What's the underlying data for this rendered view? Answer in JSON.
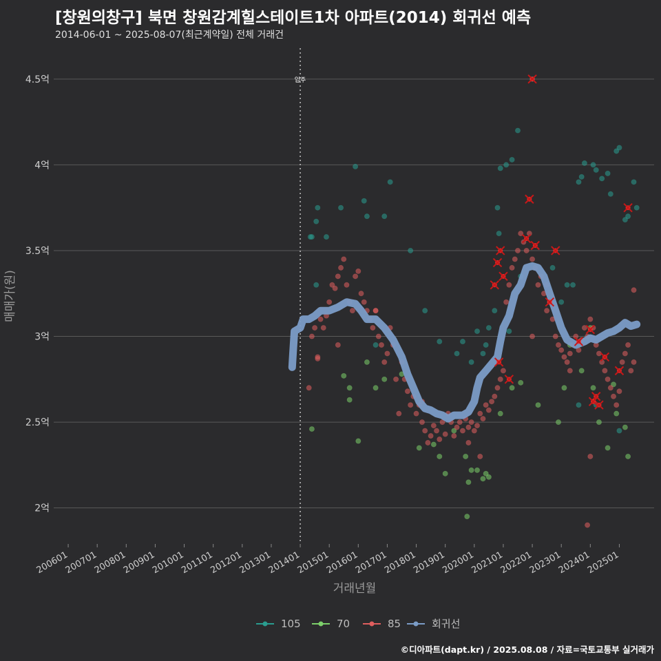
{
  "title": "[창원의창구] 북면 창원감계힐스테이트1차 아파트(2014) 회귀선 예측",
  "subtitle": "2014-06-01 ~ 2025-08-07(최근계약일) 전체 거래건",
  "credit": "©디아파트(dapt.kr) / 2025.08.08 / 자료=국토교통부 실거래가",
  "colors": {
    "bg": "#2b2b2d",
    "grid": "#5a5a5a",
    "c105": "#2a9d8f",
    "c70": "#7ccf6a",
    "c85": "#e05e5e",
    "reg": "#7b9cc7",
    "hl": "#ff2a2a"
  },
  "chart_data": {
    "type": "scatter",
    "xlabel": "거래년월",
    "ylabel": "매매가(원)",
    "x_tick_labels": [
      "200601",
      "200701",
      "200801",
      "200901",
      "201001",
      "201101",
      "201201",
      "201301",
      "201401",
      "201501",
      "201601",
      "201701",
      "201801",
      "201901",
      "202001",
      "202101",
      "202201",
      "202301",
      "202401",
      "202501"
    ],
    "y_ticks": [
      {
        "v": 2.0,
        "label": "2억"
      },
      {
        "v": 2.5,
        "label": "2.5억"
      },
      {
        "v": 3.0,
        "label": "3억"
      },
      {
        "v": 3.5,
        "label": "3.5억"
      },
      {
        "v": 4.0,
        "label": "4억"
      },
      {
        "v": 4.5,
        "label": "4.5억"
      }
    ],
    "xlim": [
      2005.5,
      2026.2
    ],
    "ylim": [
      1.79,
      4.68
    ],
    "move_in": {
      "x": 2014.0,
      "label": "입주"
    },
    "legend": [
      {
        "key": "105",
        "label": "105"
      },
      {
        "key": "70",
        "label": "70"
      },
      {
        "key": "85",
        "label": "85"
      },
      {
        "key": "reg",
        "label": "회귀선"
      }
    ],
    "series": [
      {
        "name": "105",
        "points": [
          [
            2014.35,
            3.58
          ],
          [
            2014.4,
            3.58
          ],
          [
            2014.55,
            3.67
          ],
          [
            2014.6,
            3.75
          ],
          [
            2014.55,
            3.3
          ],
          [
            2014.9,
            3.58
          ],
          [
            2015.4,
            3.75
          ],
          [
            2015.9,
            3.99
          ],
          [
            2016.2,
            3.79
          ],
          [
            2016.3,
            3.7
          ],
          [
            2016.6,
            2.95
          ],
          [
            2016.9,
            3.7
          ],
          [
            2017.1,
            3.9
          ],
          [
            2017.8,
            3.5
          ],
          [
            2018.3,
            3.15
          ],
          [
            2018.8,
            2.97
          ],
          [
            2019.4,
            2.9
          ],
          [
            2019.6,
            2.97
          ],
          [
            2019.9,
            2.85
          ],
          [
            2020.1,
            3.03
          ],
          [
            2020.3,
            2.9
          ],
          [
            2020.4,
            2.95
          ],
          [
            2020.5,
            3.05
          ],
          [
            2020.7,
            3.15
          ],
          [
            2020.8,
            3.75
          ],
          [
            2020.85,
            3.6
          ],
          [
            2020.9,
            3.98
          ],
          [
            2021.1,
            4.0
          ],
          [
            2021.3,
            4.03
          ],
          [
            2021.5,
            4.2
          ],
          [
            2021.2,
            3.03
          ],
          [
            2021.6,
            3.35
          ],
          [
            2022.0,
            4.5
          ],
          [
            2022.7,
            3.4
          ],
          [
            2023.0,
            3.2
          ],
          [
            2023.2,
            3.3
          ],
          [
            2023.4,
            3.3
          ],
          [
            2023.6,
            3.9
          ],
          [
            2023.7,
            3.93
          ],
          [
            2023.8,
            4.01
          ],
          [
            2024.1,
            4.0
          ],
          [
            2024.2,
            3.97
          ],
          [
            2024.4,
            3.92
          ],
          [
            2024.6,
            3.95
          ],
          [
            2024.7,
            3.83
          ],
          [
            2024.9,
            4.08
          ],
          [
            2025.0,
            4.1
          ],
          [
            2025.2,
            3.68
          ],
          [
            2025.3,
            3.7
          ],
          [
            2025.5,
            3.9
          ],
          [
            2025.6,
            3.75
          ],
          [
            2025.0,
            2.45
          ],
          [
            2024.2,
            2.6
          ],
          [
            2023.6,
            2.6
          ]
        ]
      },
      {
        "name": "70",
        "points": [
          [
            2014.4,
            2.46
          ],
          [
            2015.5,
            2.77
          ],
          [
            2015.7,
            2.7
          ],
          [
            2015.7,
            2.63
          ],
          [
            2016.0,
            2.39
          ],
          [
            2016.3,
            2.85
          ],
          [
            2016.6,
            2.7
          ],
          [
            2016.9,
            2.75
          ],
          [
            2017.5,
            2.78
          ],
          [
            2018.1,
            2.35
          ],
          [
            2018.6,
            2.37
          ],
          [
            2018.8,
            2.3
          ],
          [
            2019.0,
            2.2
          ],
          [
            2019.3,
            2.45
          ],
          [
            2019.7,
            2.3
          ],
          [
            2019.9,
            2.22
          ],
          [
            2020.1,
            2.22
          ],
          [
            2020.3,
            2.17
          ],
          [
            2020.4,
            2.2
          ],
          [
            2020.5,
            2.18
          ],
          [
            2019.8,
            2.15
          ],
          [
            2019.75,
            1.95
          ],
          [
            2020.9,
            2.55
          ],
          [
            2021.3,
            2.7
          ],
          [
            2021.6,
            2.73
          ],
          [
            2022.2,
            2.6
          ],
          [
            2022.9,
            2.5
          ],
          [
            2023.1,
            2.7
          ],
          [
            2023.7,
            2.8
          ],
          [
            2024.1,
            2.7
          ],
          [
            2024.3,
            2.5
          ],
          [
            2024.6,
            2.35
          ],
          [
            2024.8,
            2.72
          ],
          [
            2024.9,
            2.55
          ],
          [
            2025.2,
            2.47
          ],
          [
            2025.3,
            2.3
          ],
          [
            2024.0,
            3.05
          ],
          [
            2023.3,
            2.95
          ]
        ]
      },
      {
        "name": "85",
        "points": [
          [
            2014.4,
            3.0
          ],
          [
            2014.5,
            3.05
          ],
          [
            2014.6,
            2.87
          ],
          [
            2014.7,
            3.1
          ],
          [
            2014.8,
            3.05
          ],
          [
            2014.9,
            3.12
          ],
          [
            2015.0,
            3.2
          ],
          [
            2015.1,
            3.3
          ],
          [
            2015.2,
            3.28
          ],
          [
            2015.3,
            3.35
          ],
          [
            2015.4,
            3.4
          ],
          [
            2015.5,
            3.45
          ],
          [
            2015.6,
            3.3
          ],
          [
            2015.7,
            3.2
          ],
          [
            2015.8,
            3.15
          ],
          [
            2015.9,
            3.35
          ],
          [
            2016.0,
            3.38
          ],
          [
            2016.1,
            3.25
          ],
          [
            2016.2,
            3.2
          ],
          [
            2016.3,
            3.15
          ],
          [
            2016.4,
            3.1
          ],
          [
            2016.5,
            3.05
          ],
          [
            2016.6,
            3.15
          ],
          [
            2016.7,
            3.0
          ],
          [
            2016.8,
            2.95
          ],
          [
            2016.9,
            2.85
          ],
          [
            2017.0,
            2.9
          ],
          [
            2017.1,
            3.05
          ],
          [
            2017.2,
            2.95
          ],
          [
            2017.3,
            2.75
          ],
          [
            2017.5,
            2.85
          ],
          [
            2017.6,
            2.75
          ],
          [
            2017.7,
            2.68
          ],
          [
            2017.8,
            2.6
          ],
          [
            2017.9,
            2.65
          ],
          [
            2018.0,
            2.55
          ],
          [
            2018.1,
            2.6
          ],
          [
            2018.2,
            2.5
          ],
          [
            2018.3,
            2.45
          ],
          [
            2018.4,
            2.38
          ],
          [
            2018.5,
            2.42
          ],
          [
            2018.6,
            2.48
          ],
          [
            2018.7,
            2.45
          ],
          [
            2018.8,
            2.4
          ],
          [
            2018.9,
            2.5
          ],
          [
            2019.0,
            2.43
          ],
          [
            2019.1,
            2.55
          ],
          [
            2019.2,
            2.5
          ],
          [
            2019.3,
            2.42
          ],
          [
            2019.4,
            2.47
          ],
          [
            2019.5,
            2.5
          ],
          [
            2019.6,
            2.45
          ],
          [
            2019.7,
            2.52
          ],
          [
            2019.8,
            2.47
          ],
          [
            2019.9,
            2.5
          ],
          [
            2020.0,
            2.45
          ],
          [
            2020.1,
            2.48
          ],
          [
            2020.2,
            2.55
          ],
          [
            2020.3,
            2.52
          ],
          [
            2020.4,
            2.6
          ],
          [
            2020.5,
            2.57
          ],
          [
            2020.6,
            2.62
          ],
          [
            2020.7,
            2.65
          ],
          [
            2020.8,
            2.7
          ],
          [
            2020.9,
            2.75
          ],
          [
            2021.0,
            2.8
          ],
          [
            2021.1,
            3.2
          ],
          [
            2021.2,
            3.3
          ],
          [
            2021.3,
            3.4
          ],
          [
            2021.4,
            3.45
          ],
          [
            2021.5,
            3.5
          ],
          [
            2021.6,
            3.6
          ],
          [
            2021.7,
            3.55
          ],
          [
            2021.8,
            3.5
          ],
          [
            2021.9,
            3.6
          ],
          [
            2022.0,
            3.45
          ],
          [
            2022.1,
            3.4
          ],
          [
            2022.2,
            3.3
          ],
          [
            2022.3,
            3.35
          ],
          [
            2022.4,
            3.25
          ],
          [
            2022.5,
            3.15
          ],
          [
            2022.6,
            3.2
          ],
          [
            2022.7,
            3.1
          ],
          [
            2022.8,
            3.0
          ],
          [
            2022.9,
            2.95
          ],
          [
            2023.0,
            2.92
          ],
          [
            2023.1,
            2.88
          ],
          [
            2023.2,
            2.85
          ],
          [
            2023.3,
            2.9
          ],
          [
            2023.4,
            2.95
          ],
          [
            2023.5,
            3.0
          ],
          [
            2023.6,
            2.92
          ],
          [
            2023.7,
            2.98
          ],
          [
            2023.8,
            3.05
          ],
          [
            2023.9,
            3.0
          ],
          [
            2024.0,
            3.1
          ],
          [
            2024.1,
            3.05
          ],
          [
            2024.2,
            2.95
          ],
          [
            2024.3,
            2.9
          ],
          [
            2024.4,
            2.85
          ],
          [
            2024.5,
            2.8
          ],
          [
            2024.6,
            2.75
          ],
          [
            2024.7,
            2.7
          ],
          [
            2024.8,
            2.65
          ],
          [
            2024.9,
            2.6
          ],
          [
            2025.0,
            2.68
          ],
          [
            2025.1,
            2.85
          ],
          [
            2025.2,
            2.9
          ],
          [
            2025.3,
            2.95
          ],
          [
            2025.4,
            2.8
          ],
          [
            2025.5,
            2.85
          ],
          [
            2025.5,
            3.27
          ],
          [
            2023.9,
            1.9
          ],
          [
            2024.0,
            2.3
          ],
          [
            2020.2,
            2.3
          ],
          [
            2019.8,
            2.38
          ],
          [
            2014.3,
            2.7
          ],
          [
            2014.6,
            2.88
          ],
          [
            2015.3,
            2.95
          ],
          [
            2016.6,
            3.15
          ],
          [
            2017.4,
            2.55
          ],
          [
            2018.2,
            2.62
          ],
          [
            2022.0,
            3.0
          ],
          [
            2022.5,
            3.3
          ],
          [
            2023.3,
            2.8
          ]
        ]
      },
      {
        "name": "highlight",
        "points": [
          [
            2020.7,
            3.3
          ],
          [
            2020.8,
            3.43
          ],
          [
            2020.9,
            3.5
          ],
          [
            2021.0,
            3.35
          ],
          [
            2020.85,
            2.85
          ],
          [
            2021.2,
            2.75
          ],
          [
            2021.9,
            3.8
          ],
          [
            2022.1,
            3.53
          ],
          [
            2022.6,
            3.2
          ],
          [
            2022.8,
            3.5
          ],
          [
            2022.0,
            4.5
          ],
          [
            2023.6,
            2.97
          ],
          [
            2024.0,
            3.04
          ],
          [
            2024.2,
            2.65
          ],
          [
            2024.3,
            2.6
          ],
          [
            2024.5,
            2.88
          ],
          [
            2025.0,
            2.8
          ],
          [
            2025.3,
            3.75
          ],
          [
            2021.8,
            3.57
          ],
          [
            2024.1,
            2.62
          ]
        ]
      }
    ],
    "regression": [
      [
        2013.72,
        2.82
      ],
      [
        2013.75,
        2.9
      ],
      [
        2013.8,
        3.03
      ],
      [
        2014.0,
        3.05
      ],
      [
        2014.1,
        3.1
      ],
      [
        2014.3,
        3.1
      ],
      [
        2014.5,
        3.12
      ],
      [
        2014.7,
        3.15
      ],
      [
        2015.0,
        3.15
      ],
      [
        2015.3,
        3.17
      ],
      [
        2015.6,
        3.2
      ],
      [
        2015.9,
        3.19
      ],
      [
        2016.1,
        3.15
      ],
      [
        2016.3,
        3.1
      ],
      [
        2016.6,
        3.1
      ],
      [
        2016.9,
        3.05
      ],
      [
        2017.2,
        2.98
      ],
      [
        2017.5,
        2.88
      ],
      [
        2017.7,
        2.78
      ],
      [
        2017.9,
        2.7
      ],
      [
        2018.1,
        2.62
      ],
      [
        2018.3,
        2.58
      ],
      [
        2018.5,
        2.57
      ],
      [
        2018.7,
        2.55
      ],
      [
        2018.9,
        2.54
      ],
      [
        2019.0,
        2.53
      ],
      [
        2019.1,
        2.52
      ],
      [
        2019.3,
        2.54
      ],
      [
        2019.6,
        2.54
      ],
      [
        2019.8,
        2.56
      ],
      [
        2020.0,
        2.62
      ],
      [
        2020.1,
        2.7
      ],
      [
        2020.2,
        2.76
      ],
      [
        2020.4,
        2.8
      ],
      [
        2020.6,
        2.84
      ],
      [
        2020.8,
        2.88
      ],
      [
        2020.9,
        2.97
      ],
      [
        2021.0,
        3.05
      ],
      [
        2021.2,
        3.12
      ],
      [
        2021.4,
        3.25
      ],
      [
        2021.6,
        3.3
      ],
      [
        2021.7,
        3.35
      ],
      [
        2021.8,
        3.4
      ],
      [
        2022.0,
        3.41
      ],
      [
        2022.2,
        3.4
      ],
      [
        2022.4,
        3.35
      ],
      [
        2022.6,
        3.25
      ],
      [
        2022.8,
        3.15
      ],
      [
        2023.0,
        3.05
      ],
      [
        2023.2,
        2.98
      ],
      [
        2023.5,
        2.95
      ],
      [
        2023.8,
        2.97
      ],
      [
        2024.0,
        2.99
      ],
      [
        2024.2,
        2.98
      ],
      [
        2024.4,
        3.0
      ],
      [
        2024.6,
        3.02
      ],
      [
        2024.8,
        3.03
      ],
      [
        2025.0,
        3.05
      ],
      [
        2025.2,
        3.08
      ],
      [
        2025.4,
        3.06
      ],
      [
        2025.6,
        3.07
      ]
    ]
  }
}
